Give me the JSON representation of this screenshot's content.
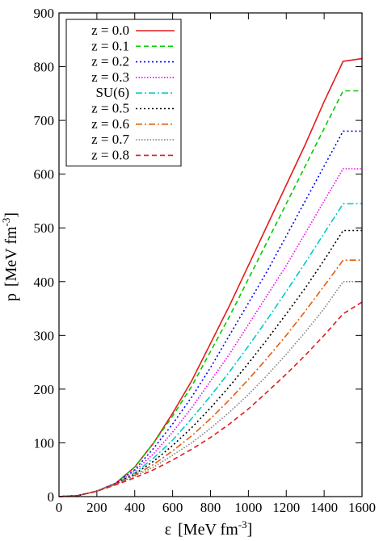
{
  "chart_data": {
    "type": "line",
    "title": "",
    "xlabel": {
      "symbol": "ε",
      "unit_prefix": "[MeV fm",
      "unit_exponent": "-3",
      "unit_suffix": "]"
    },
    "ylabel": {
      "symbol": "p",
      "unit_prefix": "[MeV fm",
      "unit_exponent": "-3",
      "unit_suffix": "]"
    },
    "xlim": [
      0,
      1600
    ],
    "ylim": [
      0,
      900
    ],
    "xticks": [
      0,
      200,
      400,
      600,
      800,
      1000,
      1200,
      1400,
      1600
    ],
    "yticks": [
      0,
      100,
      200,
      300,
      400,
      500,
      600,
      700,
      800,
      900
    ],
    "grid": false,
    "legend_position": "top-left",
    "x": [
      0,
      100,
      200,
      300,
      400,
      500,
      600,
      700,
      800,
      900,
      1000,
      1100,
      1200,
      1300,
      1400,
      1500,
      1600
    ],
    "series": [
      {
        "name": "z = 0.0",
        "color": "#e41a1c",
        "dash": "solid",
        "values": [
          0,
          2,
          10,
          25,
          55,
          100,
          155,
          215,
          285,
          355,
          430,
          505,
          580,
          655,
          735,
          810,
          815
        ]
      },
      {
        "name": "z = 0.1",
        "color": "#00cc00",
        "dash": "dash",
        "values": [
          0,
          2,
          10,
          25,
          55,
          100,
          150,
          205,
          270,
          335,
          405,
          475,
          545,
          615,
          685,
          755,
          755
        ]
      },
      {
        "name": "z = 0.2",
        "color": "#0000ff",
        "dash": "dot",
        "values": [
          0,
          2,
          10,
          25,
          50,
          90,
          135,
          185,
          240,
          300,
          360,
          420,
          485,
          550,
          615,
          680,
          680
        ]
      },
      {
        "name": "z = 0.3",
        "color": "#ee00ee",
        "dash": "finedot",
        "values": [
          0,
          2,
          10,
          25,
          48,
          80,
          120,
          165,
          215,
          265,
          320,
          375,
          430,
          490,
          550,
          610,
          610
        ]
      },
      {
        "name": "SU(6)",
        "color": "#00cccc",
        "dash": "dashdot",
        "values": [
          0,
          2,
          10,
          24,
          44,
          72,
          105,
          145,
          187,
          232,
          280,
          330,
          382,
          435,
          490,
          545,
          545
        ]
      },
      {
        "name": "z = 0.5",
        "color": "#000000",
        "dash": "dot",
        "values": [
          0,
          2,
          10,
          24,
          42,
          66,
          95,
          128,
          165,
          205,
          248,
          293,
          340,
          388,
          440,
          495,
          495
        ]
      },
      {
        "name": "z = 0.6",
        "color": "#e06010",
        "dash": "dashdot",
        "values": [
          0,
          2,
          10,
          23,
          40,
          60,
          85,
          113,
          145,
          180,
          218,
          258,
          300,
          345,
          392,
          440,
          440
        ]
      },
      {
        "name": "z = 0.7",
        "color": "#808080",
        "dash": "finedot",
        "values": [
          0,
          2,
          10,
          23,
          38,
          55,
          77,
          100,
          127,
          157,
          190,
          226,
          265,
          306,
          350,
          400,
          400
        ]
      },
      {
        "name": "z = 0.8",
        "color": "#e41a1c",
        "dash": "dash",
        "values": [
          0,
          2,
          10,
          22,
          35,
          50,
          68,
          88,
          110,
          135,
          163,
          195,
          228,
          263,
          300,
          340,
          362
        ]
      }
    ]
  }
}
